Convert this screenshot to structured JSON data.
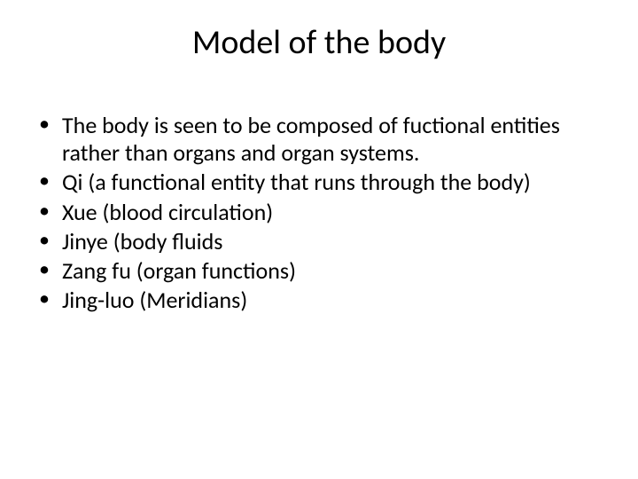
{
  "slide": {
    "title": "Model of the body",
    "title_fontsize": 38,
    "title_color": "#000000",
    "body_fontsize": 26,
    "body_color": "#000000",
    "background_color": "#ffffff",
    "bullets": [
      "The body is seen to be composed of fuctional entities rather than organs and organ systems.",
      "Qi (a functional entity that runs through the body)",
      "Xue (blood circulation)",
      "Jinye (body fluids",
      "Zang fu (organ functions)",
      "Jing-luo (Meridians)"
    ]
  }
}
